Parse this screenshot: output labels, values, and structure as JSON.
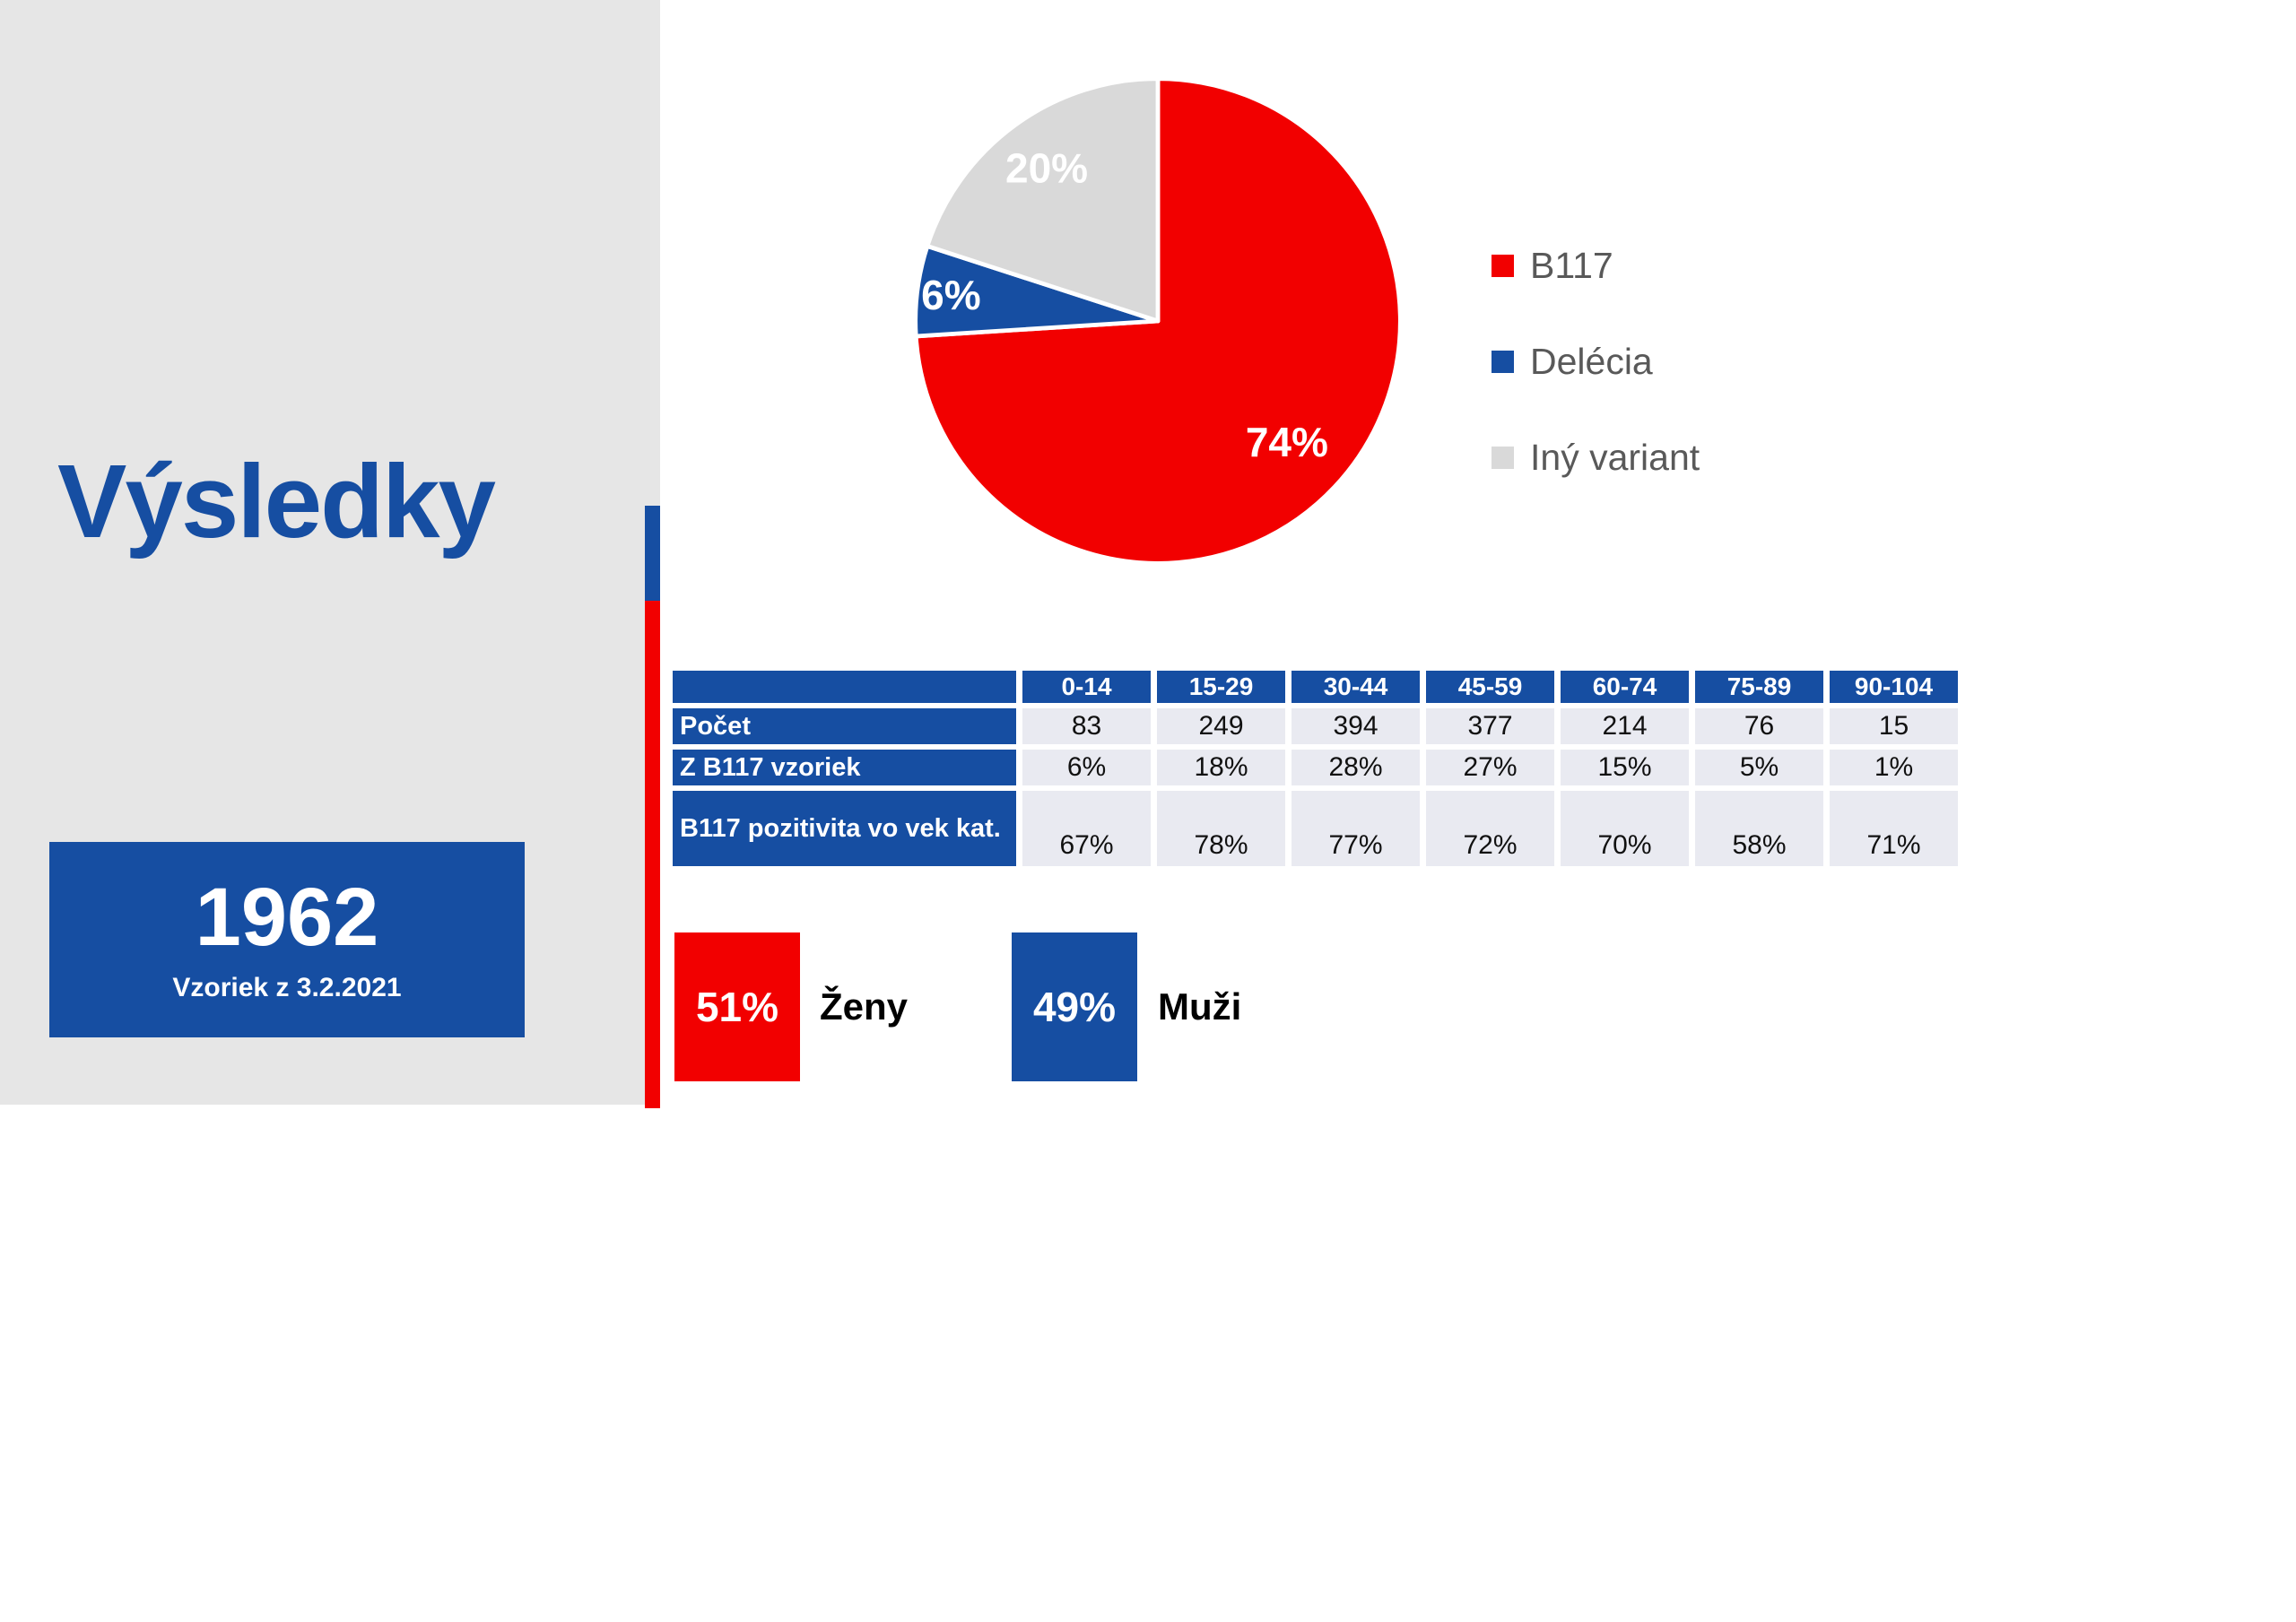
{
  "slide": {
    "title": "Výsledky",
    "stat_box": {
      "value": "1962",
      "caption": "Vzoriek z 3.2.2021"
    }
  },
  "colors": {
    "red": "#F20000",
    "blue": "#164EA2",
    "light_gray": "#D9D9D9",
    "panel_gray": "#E6E6E6",
    "cell_bg": "#E9EAF1",
    "legend_text": "#595959"
  },
  "chart_data": [
    {
      "type": "pie",
      "title": "",
      "labels": [
        "B117",
        "Delécia",
        "Iný variant"
      ],
      "values": [
        74,
        6,
        20
      ],
      "value_labels": [
        "74%",
        "6%",
        "20%"
      ],
      "colors": [
        "#F20000",
        "#164EA2",
        "#D9D9D9"
      ],
      "start_angle_deg": 0,
      "direction": "clockwise",
      "label_radius": [
        0.73,
        0.86,
        0.78
      ],
      "legend_position": "right"
    },
    {
      "type": "table",
      "columns": [
        "0-14",
        "15-29",
        "30-44",
        "45-59",
        "60-74",
        "75-89",
        "90-104"
      ],
      "rows": [
        {
          "label": "Počet",
          "values": [
            "83",
            "249",
            "394",
            "377",
            "214",
            "76",
            "15"
          ]
        },
        {
          "label": "Z B117 vzoriek",
          "values": [
            "6%",
            "18%",
            "28%",
            "27%",
            "15%",
            "5%",
            "1%"
          ]
        },
        {
          "label": "B117 pozitivita vo vek kat.",
          "values": [
            "67%",
            "78%",
            "77%",
            "72%",
            "70%",
            "58%",
            "71%"
          ]
        }
      ]
    }
  ],
  "gender_stats": [
    {
      "value": "51%",
      "label": "Ženy",
      "color": "#F20000"
    },
    {
      "value": "49%",
      "label": "Muži",
      "color": "#164EA2"
    }
  ]
}
